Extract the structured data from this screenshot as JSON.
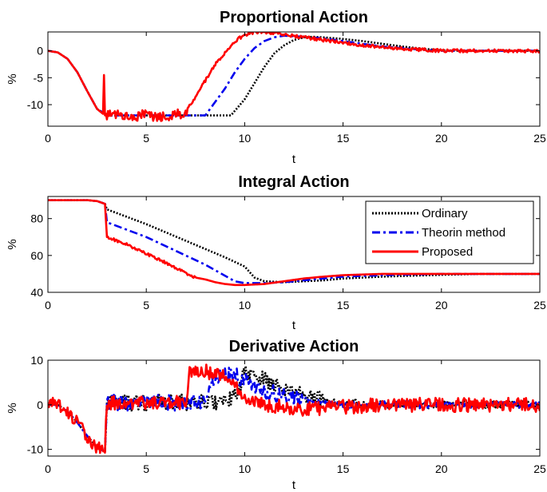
{
  "chart_data": [
    {
      "type": "line",
      "title": "Proportional Action",
      "xlabel": "t",
      "ylabel": "%",
      "xlim": [
        0,
        25
      ],
      "ylim": [
        -14,
        3.5
      ],
      "xticks": [
        0,
        5,
        10,
        15,
        20,
        25
      ],
      "yticks": [
        0,
        -5,
        -10
      ],
      "grid": false,
      "legend": null,
      "series": [
        {
          "color": "#000000",
          "style": "dotted",
          "x": [
            0,
            0.5,
            1,
            1.5,
            2,
            2.5,
            2.9,
            3,
            4,
            5,
            6,
            7,
            8,
            9,
            9.3,
            10,
            10.5,
            11,
            11.5,
            12,
            12.5,
            13,
            13.5,
            14,
            15,
            16,
            17,
            18,
            19,
            20,
            21,
            22,
            23,
            24,
            25
          ],
          "y": [
            0,
            -0.3,
            -1.5,
            -4,
            -7.5,
            -10.8,
            -11.7,
            -12,
            -12,
            -12,
            -12,
            -12,
            -12,
            -12,
            -12,
            -9,
            -6,
            -3,
            -0.5,
            1,
            2,
            2.5,
            2.6,
            2.5,
            2.2,
            1.8,
            1.3,
            0.8,
            0.4,
            0.1,
            0,
            0,
            0,
            0,
            0
          ]
        },
        {
          "color": "#0000ee",
          "style": "dashdot",
          "x": [
            0,
            0.5,
            1,
            1.5,
            2,
            2.5,
            2.9,
            3,
            4,
            5,
            6,
            7,
            7.5,
            8,
            8.5,
            9,
            9.5,
            10,
            10.5,
            11,
            11.5,
            12,
            13,
            14,
            15,
            16,
            17,
            18,
            19,
            20,
            21,
            22,
            23,
            24,
            25
          ],
          "y": [
            0,
            -0.3,
            -1.5,
            -4,
            -7.5,
            -10.8,
            -11.7,
            -12,
            -12,
            -12,
            -12,
            -12,
            -12,
            -12,
            -9.5,
            -7,
            -4,
            -1.5,
            0.5,
            1.8,
            2.5,
            2.8,
            2.6,
            2.3,
            1.8,
            1.3,
            0.8,
            0.5,
            0.2,
            0,
            0,
            0,
            0,
            0,
            0
          ]
        },
        {
          "color": "#ff0000",
          "style": "solid",
          "noise": 1.1,
          "noiseRange": [
            2.9,
            7.1
          ],
          "noiseTail": 0.3,
          "x": [
            0,
            0.5,
            1,
            1.5,
            2,
            2.5,
            2.8,
            2.85,
            2.9,
            2.95,
            3,
            4,
            5,
            6,
            7,
            7.5,
            8,
            8.5,
            9,
            9.5,
            10,
            10.5,
            11,
            11.5,
            12,
            13,
            14,
            15,
            16,
            17,
            18,
            19,
            20,
            21,
            22,
            23,
            24,
            25
          ],
          "y": [
            0,
            -0.3,
            -1.5,
            -4,
            -7.5,
            -10.8,
            -11.7,
            -4.5,
            -12,
            -12,
            -12,
            -12,
            -12,
            -12,
            -11.5,
            -8.5,
            -5.5,
            -2.5,
            -0.3,
            1.8,
            3,
            3.5,
            3.5,
            3.3,
            3,
            2.5,
            2,
            1.5,
            1,
            0.7,
            0.4,
            0.2,
            0,
            0,
            0,
            0,
            0,
            0
          ]
        }
      ]
    },
    {
      "type": "line",
      "title": "Integral Action",
      "xlabel": "t",
      "ylabel": "%",
      "xlim": [
        0,
        25
      ],
      "ylim": [
        40,
        92
      ],
      "xticks": [
        0,
        5,
        10,
        15,
        20,
        25
      ],
      "yticks": [
        80,
        60,
        40
      ],
      "grid": false,
      "legend": "top-right",
      "series": [
        {
          "name": "Ordinary",
          "color": "#000000",
          "style": "dotted",
          "x": [
            0,
            1,
            2,
            2.5,
            2.9,
            3,
            4,
            5,
            6,
            7,
            8,
            9,
            10,
            10.5,
            11,
            12,
            13,
            14,
            15,
            17,
            20,
            22,
            25
          ],
          "y": [
            90,
            90,
            90,
            89.5,
            88,
            85,
            81,
            77,
            72.5,
            68,
            63.5,
            59,
            54,
            48,
            46,
            45.5,
            46,
            46.5,
            47.5,
            48.5,
            49.5,
            50,
            50
          ]
        },
        {
          "name": "Theorin method",
          "color": "#0000ee",
          "style": "dashdot",
          "x": [
            0,
            1,
            2,
            2.5,
            2.9,
            3,
            4,
            5,
            6,
            7,
            8,
            9,
            9.5,
            10,
            11,
            12,
            13,
            14,
            15,
            17,
            20,
            22,
            25
          ],
          "y": [
            90,
            90,
            90,
            89.5,
            88,
            78,
            74,
            70,
            65,
            60,
            55,
            49,
            46,
            45,
            45,
            45.5,
            46.5,
            47.5,
            48.5,
            49.3,
            50,
            50,
            50
          ]
        },
        {
          "name": "Proposed",
          "color": "#ff0000",
          "style": "solid",
          "noise": 0.7,
          "noiseRange": [
            3,
            7.5
          ],
          "noiseTail": 0,
          "x": [
            0,
            1,
            2,
            2.5,
            2.9,
            3,
            4,
            5,
            6,
            7,
            7.5,
            8,
            8.5,
            9,
            9.5,
            10,
            11,
            12,
            13,
            14,
            15,
            17,
            20,
            22,
            25
          ],
          "y": [
            90,
            90,
            90,
            89.5,
            88,
            70,
            66,
            61,
            56,
            50.5,
            48,
            47,
            45.5,
            44.5,
            44,
            44,
            44.5,
            46,
            47.5,
            48.5,
            49.3,
            50,
            50,
            50,
            50
          ]
        }
      ]
    },
    {
      "type": "line",
      "title": "Derivative Action",
      "xlabel": "t",
      "ylabel": "%",
      "xlim": [
        0,
        25
      ],
      "ylim": [
        -11.5,
        10
      ],
      "xticks": [
        0,
        5,
        10,
        15,
        20,
        25
      ],
      "yticks": [
        10,
        0,
        -10
      ],
      "grid": false,
      "legend": null,
      "series": [
        {
          "color": "#000000",
          "style": "dotted",
          "noise": 1.8,
          "noiseRange": [
            3,
            14
          ],
          "noiseTail": 0.8,
          "x": [
            0,
            0.5,
            1,
            1.5,
            2,
            2.5,
            2.9,
            3,
            4,
            5,
            6,
            7,
            8,
            9,
            9.5,
            10,
            10.5,
            11,
            11.5,
            12,
            13,
            14,
            15,
            17,
            20,
            25
          ],
          "y": [
            0,
            0,
            -1.5,
            -4,
            -7,
            -9.5,
            -10.5,
            0.5,
            0.5,
            0.5,
            0.5,
            0.5,
            0.5,
            0.5,
            2,
            7,
            6.5,
            5.5,
            4.5,
            3.5,
            2.2,
            1.2,
            0.5,
            0,
            0,
            0
          ]
        },
        {
          "color": "#0000ee",
          "style": "dashdot",
          "noise": 1.8,
          "noiseRange": [
            3,
            13
          ],
          "noiseTail": 0.8,
          "x": [
            0,
            0.5,
            1,
            1.5,
            2,
            2.5,
            2.9,
            3,
            4,
            5,
            6,
            7,
            8,
            8.3,
            8.8,
            9.3,
            10,
            10.5,
            11,
            12,
            13,
            15,
            17,
            20,
            25
          ],
          "y": [
            0,
            0,
            -1.5,
            -4,
            -7,
            -9.5,
            -10.5,
            0.5,
            0.5,
            0.5,
            0.5,
            0.5,
            0.5,
            5,
            7,
            7,
            5.5,
            4.2,
            3.2,
            2,
            1,
            0,
            0,
            0,
            0
          ]
        },
        {
          "color": "#ff0000",
          "style": "solid",
          "noise": 1.6,
          "noiseRange": [
            0,
            25
          ],
          "noiseTail": 1.6,
          "x": [
            0,
            0.5,
            1,
            1.5,
            2,
            2.5,
            2.9,
            3,
            4,
            5,
            6,
            7,
            7.2,
            7.5,
            8,
            9,
            9.5,
            10,
            11,
            12,
            13,
            15,
            17,
            20,
            25
          ],
          "y": [
            0,
            0,
            -1.5,
            -4,
            -7,
            -9.5,
            -10.5,
            0.5,
            0.5,
            0.5,
            0.5,
            0.5,
            7.5,
            7.5,
            7.5,
            6.5,
            4,
            2,
            0,
            -0.5,
            -1,
            -0.5,
            0,
            0,
            0
          ]
        }
      ]
    }
  ]
}
